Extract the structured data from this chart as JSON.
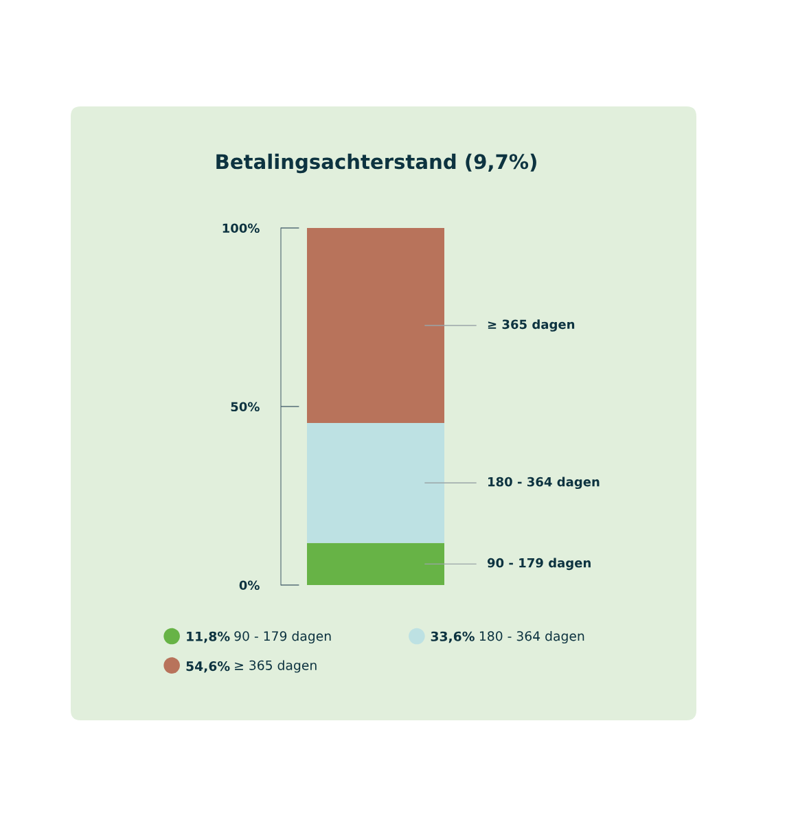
{
  "chart_data": {
    "type": "bar",
    "title": "Betalingsachterstand (9,7%)",
    "categories": [
      null
    ],
    "stacked": true,
    "series": [
      {
        "name": "90 - 179 dagen",
        "color": "#67b346",
        "values": [
          11.8
        ]
      },
      {
        "name": "180 - 364 dagen",
        "color": "#bde1e3",
        "values": [
          33.6
        ]
      },
      {
        "name": "≥ 365 dagen",
        "color": "#b8735b",
        "values": [
          54.6
        ]
      }
    ],
    "annotations": [
      "11,8%",
      "33,6%",
      "54,6%"
    ],
    "ylim": [
      0,
      100
    ],
    "yticks": [
      {
        "value": 0,
        "label": "0%"
      },
      {
        "value": 50,
        "label": "50%"
      },
      {
        "value": 100,
        "label": "100%"
      }
    ],
    "tick_labels": "y",
    "grid": false,
    "legend": "bottom"
  }
}
